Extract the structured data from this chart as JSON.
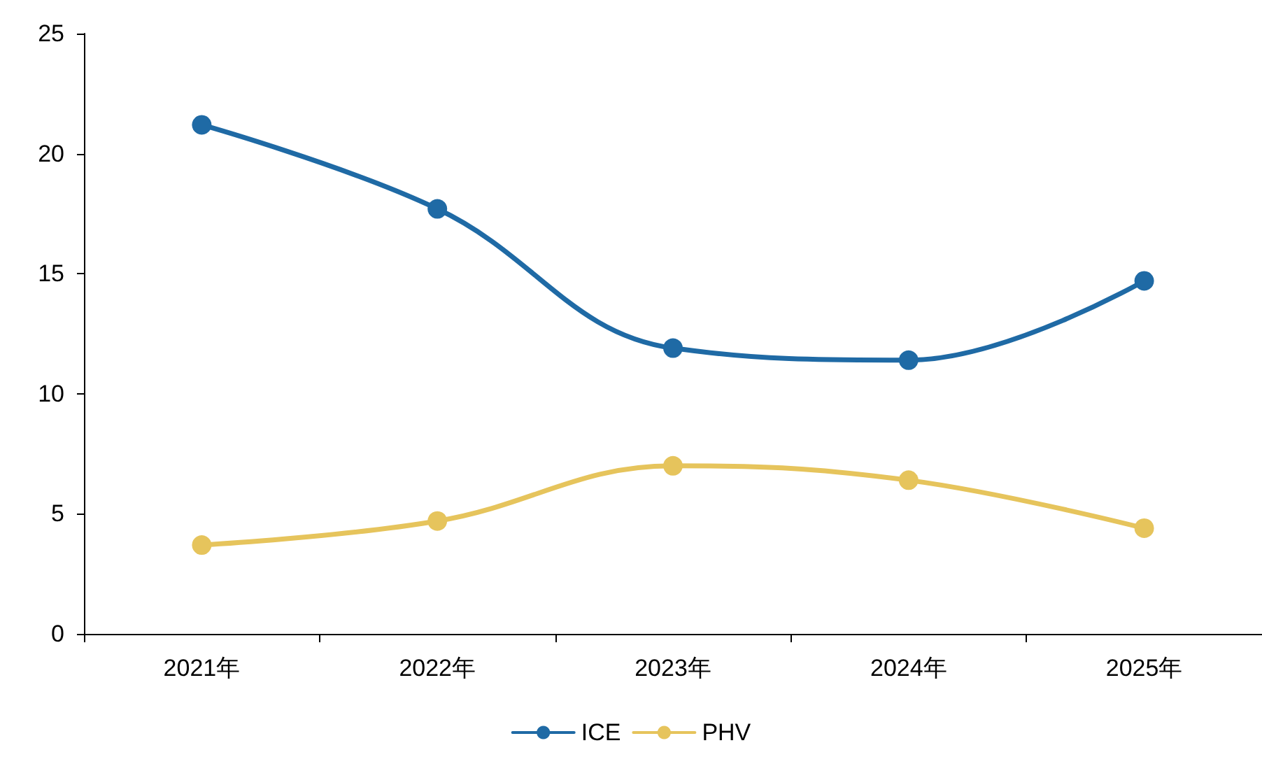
{
  "chart_data": {
    "type": "line",
    "categories": [
      "2021年",
      "2022年",
      "2023年",
      "2024年",
      "2025年"
    ],
    "series": [
      {
        "name": "ICE",
        "color": "#1f6aa5",
        "values": [
          21.2,
          17.7,
          11.9,
          11.4,
          14.7
        ]
      },
      {
        "name": "PHV",
        "color": "#e6c45c",
        "values": [
          3.7,
          4.7,
          7.0,
          6.4,
          4.4
        ]
      }
    ],
    "ylim": [
      0,
      25
    ],
    "yticks": [
      0,
      5,
      10,
      15,
      20,
      25
    ],
    "grid": false,
    "legend": "bottom",
    "marker": "circle",
    "line_style": "solid"
  }
}
